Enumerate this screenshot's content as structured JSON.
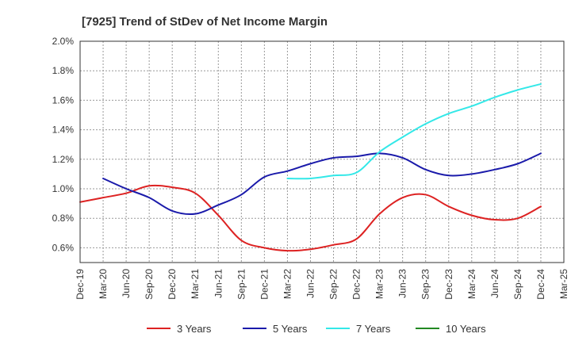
{
  "chart_data": {
    "type": "line",
    "title": "[7925]  Trend of StDev of Net Income Margin",
    "xlabel": "",
    "ylabel": "",
    "ylim": [
      0.5,
      2.0
    ],
    "yticks": [
      0.6,
      0.8,
      1.0,
      1.2,
      1.4,
      1.6,
      1.8,
      2.0
    ],
    "ytick_labels": [
      "0.6%",
      "0.8%",
      "1.0%",
      "1.2%",
      "1.4%",
      "1.6%",
      "1.8%",
      "2.0%"
    ],
    "x_tick_labels": [
      "Dec-19",
      "Mar-20",
      "Jun-20",
      "Sep-20",
      "Dec-20",
      "Mar-21",
      "Jun-21",
      "Sep-21",
      "Dec-21",
      "Mar-22",
      "Jun-22",
      "Sep-22",
      "Dec-22",
      "Mar-23",
      "Jun-23",
      "Sep-23",
      "Dec-23",
      "Mar-24",
      "Jun-24",
      "Sep-24",
      "Dec-24",
      "Mar-25"
    ],
    "grid": true,
    "legend_position": "bottom",
    "series": [
      {
        "name": "3 Years",
        "color": "#dd2222",
        "values": [
          0.91,
          0.94,
          0.97,
          1.02,
          1.01,
          0.97,
          0.82,
          0.65,
          0.6,
          0.58,
          0.59,
          0.62,
          0.66,
          0.83,
          0.94,
          0.96,
          0.88,
          0.82,
          0.79,
          0.8,
          0.88,
          null
        ]
      },
      {
        "name": "5 Years",
        "color": "#1a1aaa",
        "values": [
          null,
          1.07,
          1.0,
          0.94,
          0.85,
          0.83,
          0.89,
          0.96,
          1.08,
          1.12,
          1.17,
          1.21,
          1.22,
          1.24,
          1.21,
          1.13,
          1.09,
          1.1,
          1.13,
          1.17,
          1.24,
          null
        ]
      },
      {
        "name": "7 Years",
        "color": "#33e8e8",
        "values": [
          null,
          null,
          null,
          null,
          null,
          null,
          null,
          null,
          null,
          1.07,
          1.07,
          1.09,
          1.11,
          1.25,
          1.35,
          1.44,
          1.51,
          1.56,
          1.62,
          1.67,
          1.71,
          null
        ]
      },
      {
        "name": "10 Years",
        "color": "#228822",
        "values": [
          null,
          null,
          null,
          null,
          null,
          null,
          null,
          null,
          null,
          null,
          null,
          null,
          null,
          null,
          null,
          null,
          null,
          null,
          null,
          null,
          null,
          null
        ]
      }
    ]
  }
}
